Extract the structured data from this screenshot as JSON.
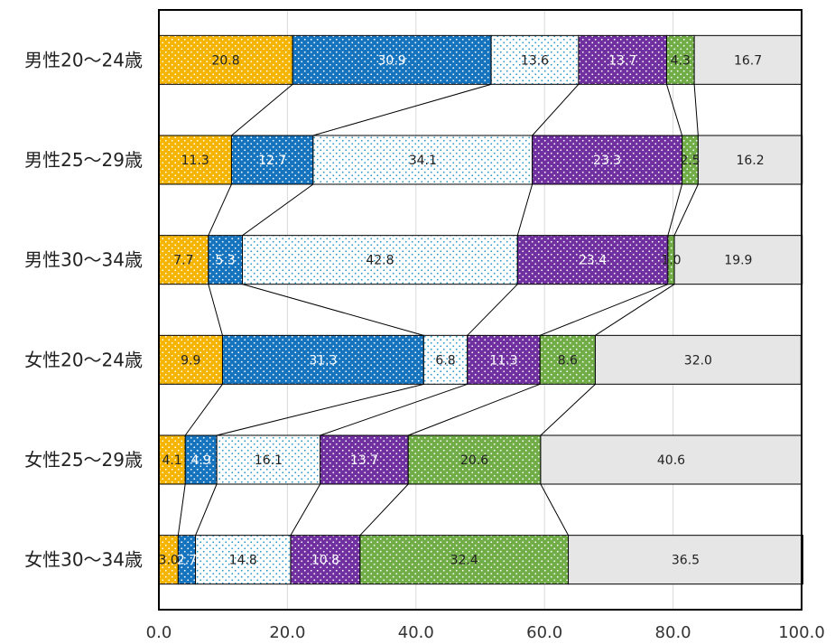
{
  "chart_data": {
    "type": "bar",
    "orientation": "horizontal",
    "stacked": true,
    "categories": [
      "男性20～24歳",
      "男性25～29歳",
      "男性30～34歳",
      "女性20～24歳",
      "女性25～29歳",
      "女性30～34歳"
    ],
    "series": [
      {
        "values": [
          20.8,
          11.3,
          7.7,
          9.9,
          4.1,
          3.0
        ],
        "color": "#f5b400",
        "text_color": "#222222",
        "dots": "#ffffff"
      },
      {
        "values": [
          30.9,
          12.7,
          5.3,
          31.3,
          4.9,
          2.7
        ],
        "color": "#1673be",
        "text_color": "#ffffff",
        "dots": "#ffffff"
      },
      {
        "values": [
          13.6,
          34.1,
          42.8,
          6.8,
          16.1,
          14.8
        ],
        "color": "#ffffff",
        "text_color": "#222222",
        "dots": "#2196c9"
      },
      {
        "values": [
          13.7,
          23.3,
          23.4,
          11.3,
          13.7,
          10.8
        ],
        "color": "#7030a0",
        "text_color": "#ffffff",
        "dots": "#ffffff"
      },
      {
        "values": [
          4.3,
          2.5,
          1.0,
          8.6,
          20.6,
          32.4
        ],
        "color": "#70ad47",
        "text_color": "#222222",
        "dots": "#ffffff"
      },
      {
        "values": [
          16.7,
          16.2,
          19.9,
          32.0,
          40.6,
          36.5
        ],
        "color": "#e7e6e6",
        "text_color": "#222222",
        "dots": null
      }
    ],
    "data_labels": [
      [
        "20.8",
        "11.3",
        "7.7",
        "9.9",
        "4.1",
        "3.0"
      ],
      [
        "30.9",
        "12.7",
        "5.3",
        "31.3",
        "4.9",
        "2.7"
      ],
      [
        "13.6",
        "34.1",
        "42.8",
        "6.8",
        "16.1",
        "14.8"
      ],
      [
        "13.7",
        "23.3",
        "23.4",
        "11.3",
        "13.7",
        "10.8"
      ],
      [
        "4.3",
        "2.5",
        "1.0",
        "8.6",
        "20.6",
        "32.4"
      ],
      [
        "16.7",
        "16.2",
        "19.9",
        "32.0",
        "40.6",
        "36.5"
      ]
    ],
    "xlim": [
      0,
      100
    ],
    "x_ticks": [
      "0.0",
      "20.0",
      "40.0",
      "60.0",
      "80.0",
      "100.0"
    ],
    "grid": true,
    "series_connectors": true,
    "title": "",
    "xlabel": "",
    "ylabel": ""
  }
}
